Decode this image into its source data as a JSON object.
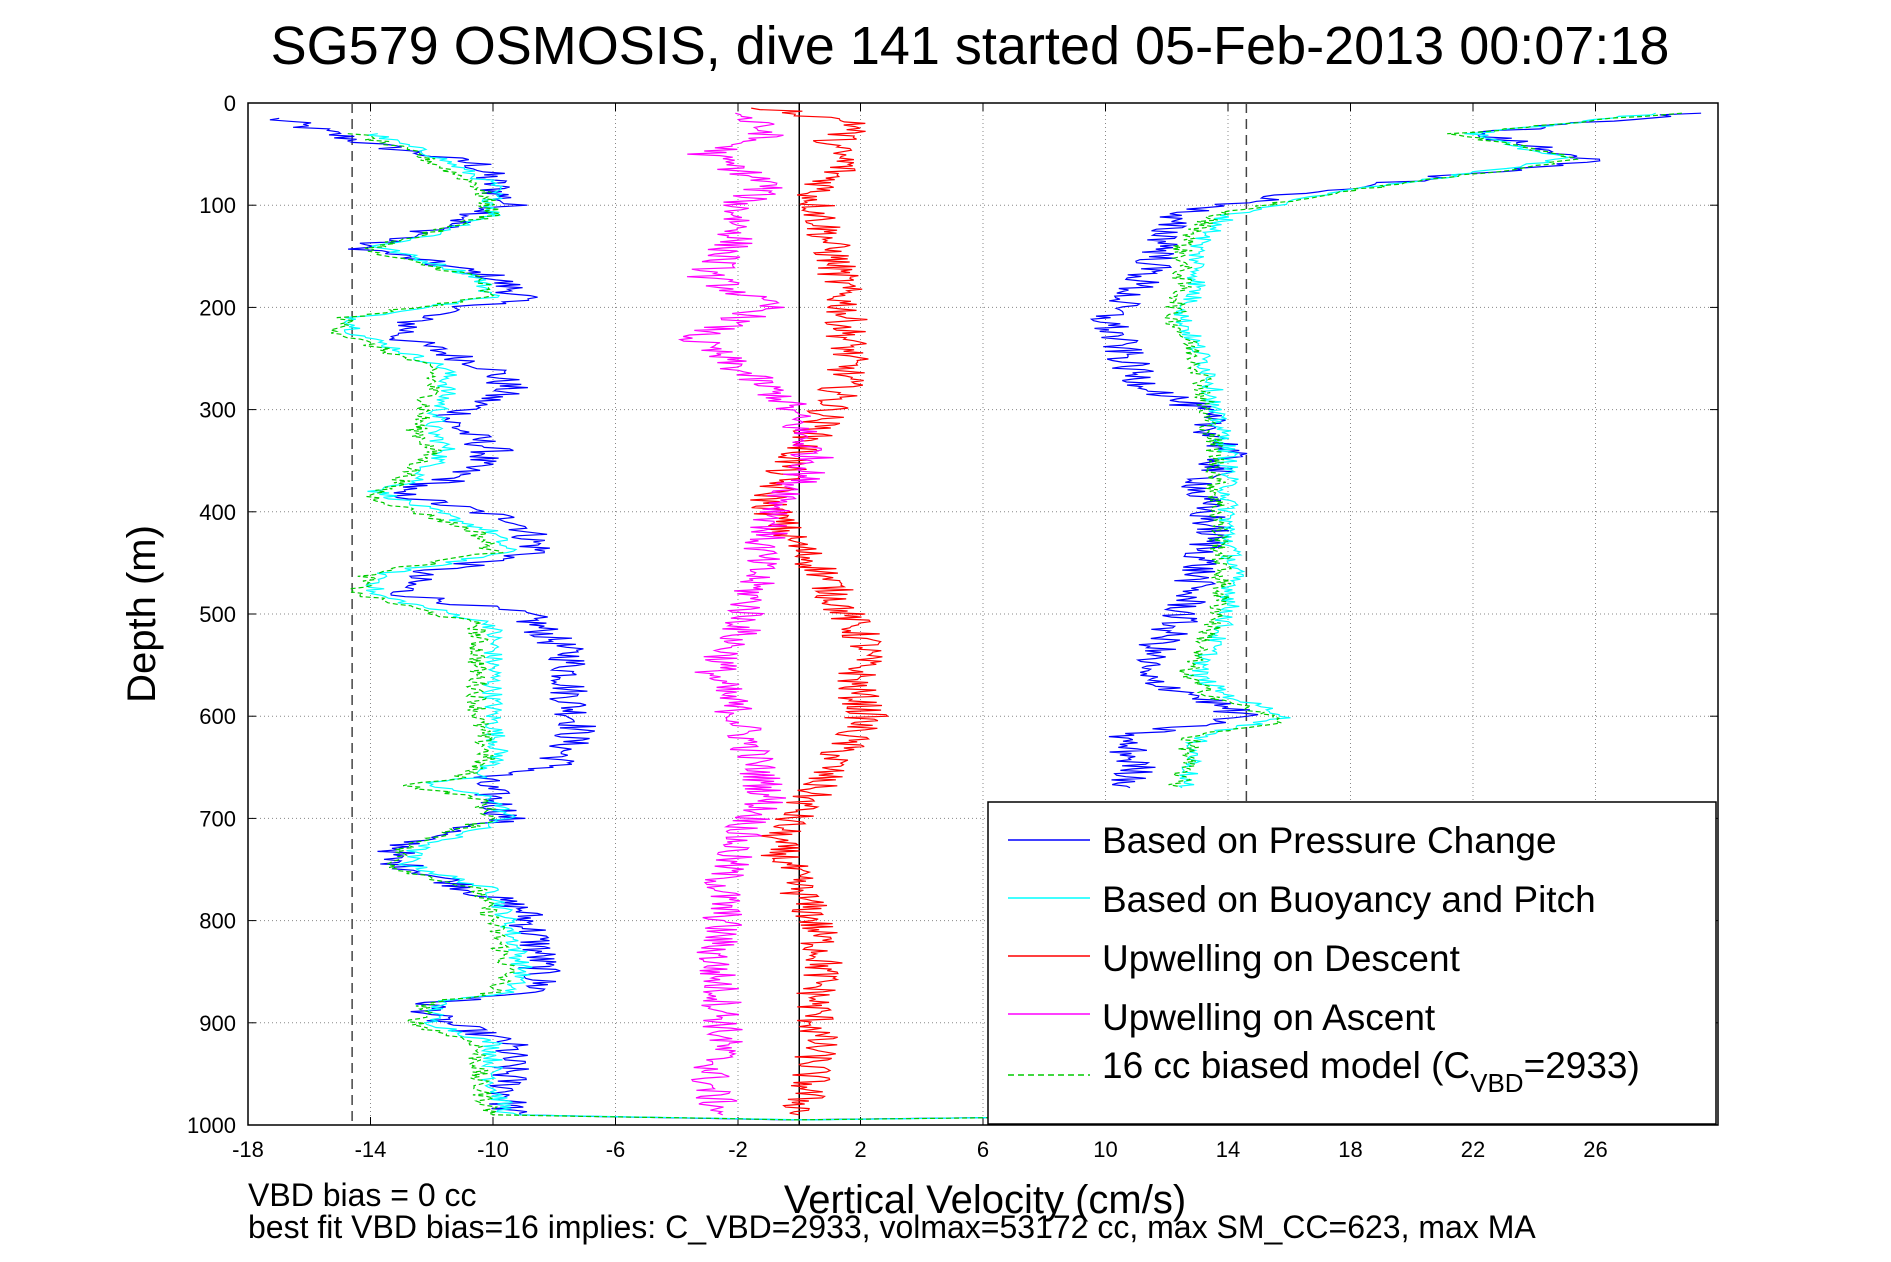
{
  "chart_data": {
    "type": "line",
    "title": "SG579 OSMOSIS, dive 141 started 05-Feb-2013 00:07:18",
    "xlabel": "Vertical Velocity (cm/s)",
    "ylabel": "Depth (m)",
    "xlim": [
      -18,
      30
    ],
    "ylim": [
      0,
      1000
    ],
    "y_reversed": true,
    "grid": true,
    "x_ticks": [
      -18,
      -14,
      -10,
      -6,
      -2,
      2,
      6,
      10,
      14,
      18,
      22,
      26
    ],
    "y_ticks": [
      0,
      100,
      200,
      300,
      400,
      500,
      600,
      700,
      800,
      900,
      1000
    ],
    "reference_lines": {
      "dashed_x": [
        -14.6,
        14.6
      ],
      "solid_x": [
        0
      ]
    },
    "legend_position": "lower-right",
    "legend": [
      {
        "label": "Based on Pressure Change",
        "color": "#0000ff",
        "dash": "solid"
      },
      {
        "label": "Based on Buoyancy and Pitch",
        "color": "#00ffff",
        "dash": "solid"
      },
      {
        "label": "Upwelling on Descent",
        "color": "#ff0000",
        "dash": "solid"
      },
      {
        "label": "Upwelling on Ascent",
        "color": "#ff00ff",
        "dash": "solid"
      },
      {
        "label": "16 cc biased model (C",
        "label_sub": "VBD",
        "label_tail": "=2933)",
        "color": "#00cc00",
        "dash": "dashed"
      }
    ],
    "series": [
      {
        "name": "Based on Pressure Change",
        "color": "#0000ff",
        "points": [
          [
            -17.2,
            15
          ],
          [
            -14,
            40
          ],
          [
            -10.5,
            60
          ],
          [
            -9.5,
            100
          ],
          [
            -12.5,
            130
          ],
          [
            -14.5,
            140
          ],
          [
            -10,
            170
          ],
          [
            -9,
            190
          ],
          [
            -12.5,
            210
          ],
          [
            -13,
            230
          ],
          [
            -10,
            260
          ],
          [
            -9.5,
            280
          ],
          [
            -11.5,
            310
          ],
          [
            -10,
            340
          ],
          [
            -11.5,
            370
          ],
          [
            -13.5,
            380
          ],
          [
            -9,
            410
          ],
          [
            -8.5,
            440
          ],
          [
            -12.5,
            460
          ],
          [
            -13,
            480
          ],
          [
            -9,
            500
          ],
          [
            -7.5,
            540
          ],
          [
            -7.5,
            580
          ],
          [
            -7.2,
            610
          ],
          [
            -8,
            650
          ],
          [
            -10.5,
            660
          ],
          [
            -10,
            680
          ],
          [
            -9.5,
            700
          ],
          [
            -12.5,
            720
          ],
          [
            -13.5,
            740
          ],
          [
            -11.5,
            760
          ],
          [
            -9,
            790
          ],
          [
            -8.5,
            830
          ],
          [
            -8.5,
            870
          ],
          [
            -12,
            880
          ],
          [
            -12,
            895
          ],
          [
            -9.5,
            920
          ],
          [
            -9.5,
            960
          ],
          [
            -9.5,
            990
          ],
          [
            0,
            995
          ],
          [
            14,
            990
          ]
        ]
      },
      {
        "name": "Based on Buoyancy and Pitch",
        "color": "#00ffff",
        "points": [
          [
            -14,
            30
          ],
          [
            -12,
            50
          ],
          [
            -10,
            80
          ],
          [
            -10,
            110
          ],
          [
            -12,
            130
          ],
          [
            -13.8,
            140
          ],
          [
            -10.5,
            170
          ],
          [
            -10,
            190
          ],
          [
            -14.5,
            210
          ],
          [
            -14.5,
            225
          ],
          [
            -11.5,
            260
          ],
          [
            -11.5,
            280
          ],
          [
            -12,
            320
          ],
          [
            -11.5,
            340
          ],
          [
            -12.5,
            370
          ],
          [
            -13.8,
            380
          ],
          [
            -10,
            420
          ],
          [
            -9.5,
            440
          ],
          [
            -13.5,
            460
          ],
          [
            -14,
            480
          ],
          [
            -10,
            510
          ],
          [
            -10,
            550
          ],
          [
            -10,
            600
          ],
          [
            -9.8,
            640
          ],
          [
            -10.5,
            660
          ],
          [
            -12.5,
            665
          ],
          [
            -10,
            680
          ],
          [
            -9.5,
            700
          ],
          [
            -12.5,
            730
          ],
          [
            -12.8,
            745
          ],
          [
            -10,
            770
          ],
          [
            -9.5,
            800
          ],
          [
            -9,
            850
          ],
          [
            -9.5,
            870
          ],
          [
            -11.8,
            880
          ],
          [
            -12,
            900
          ],
          [
            -10,
            920
          ],
          [
            -10,
            960
          ],
          [
            -9.5,
            990
          ],
          [
            0,
            995
          ],
          [
            14,
            990
          ]
        ]
      },
      {
        "name": "16 cc biased model (C_VBD=2933)",
        "color": "#00cc00",
        "points": [
          [
            -14.5,
            30
          ],
          [
            -12.5,
            50
          ],
          [
            -10.5,
            80
          ],
          [
            -10,
            110
          ],
          [
            -12.5,
            130
          ],
          [
            -14.2,
            145
          ],
          [
            -10.5,
            170
          ],
          [
            -10.2,
            190
          ],
          [
            -14.8,
            210
          ],
          [
            -15,
            225
          ],
          [
            -12,
            260
          ],
          [
            -12,
            280
          ],
          [
            -12.5,
            320
          ],
          [
            -12,
            340
          ],
          [
            -13,
            370
          ],
          [
            -14,
            385
          ],
          [
            -10.5,
            420
          ],
          [
            -10,
            440
          ],
          [
            -14,
            460
          ],
          [
            -14.5,
            480
          ],
          [
            -10.5,
            510
          ],
          [
            -10.5,
            550
          ],
          [
            -10.5,
            600
          ],
          [
            -10.2,
            640
          ],
          [
            -11,
            660
          ],
          [
            -12.8,
            668
          ],
          [
            -10.5,
            680
          ],
          [
            -10,
            700
          ],
          [
            -13,
            730
          ],
          [
            -13.2,
            748
          ],
          [
            -10.5,
            770
          ],
          [
            -10,
            800
          ],
          [
            -9.5,
            850
          ],
          [
            -10,
            870
          ],
          [
            -12.2,
            882
          ],
          [
            -12.5,
            902
          ],
          [
            -10.5,
            920
          ],
          [
            -10.5,
            960
          ],
          [
            -10,
            990
          ],
          [
            0,
            995
          ],
          [
            14,
            990
          ]
        ]
      },
      {
        "name": "Upwelling on Descent",
        "color": "#ff0000",
        "points": [
          [
            -1,
            5
          ],
          [
            2,
            20
          ],
          [
            1,
            40
          ],
          [
            1.5,
            60
          ],
          [
            0.5,
            90
          ],
          [
            0.8,
            120
          ],
          [
            1.2,
            160
          ],
          [
            1.5,
            200
          ],
          [
            1.6,
            240
          ],
          [
            1.5,
            270
          ],
          [
            1,
            300
          ],
          [
            0.3,
            330
          ],
          [
            -0.5,
            360
          ],
          [
            -1,
            390
          ],
          [
            -0.5,
            420
          ],
          [
            0.8,
            460
          ],
          [
            1.5,
            500
          ],
          [
            2.2,
            530
          ],
          [
            1.8,
            570
          ],
          [
            2.2,
            600
          ],
          [
            1.2,
            640
          ],
          [
            0.3,
            680
          ],
          [
            -0.8,
            720
          ],
          [
            -0.2,
            760
          ],
          [
            0.5,
            800
          ],
          [
            0.8,
            840
          ],
          [
            0.5,
            880
          ],
          [
            0.6,
            920
          ],
          [
            0.3,
            960
          ],
          [
            0,
            990
          ]
        ]
      },
      {
        "name": "Upwelling on Ascent",
        "color": "#ff00ff",
        "points": [
          [
            -2,
            10
          ],
          [
            -1,
            30
          ],
          [
            -3,
            50
          ],
          [
            -1,
            80
          ],
          [
            -2,
            100
          ],
          [
            -2,
            130
          ],
          [
            -3,
            170
          ],
          [
            -1,
            200
          ],
          [
            -3.5,
            230
          ],
          [
            -2,
            260
          ],
          [
            -0.5,
            290
          ],
          [
            0,
            320
          ],
          [
            0.5,
            350
          ],
          [
            -0.5,
            390
          ],
          [
            -1.2,
            430
          ],
          [
            -1.5,
            470
          ],
          [
            -1.8,
            510
          ],
          [
            -2.8,
            560
          ],
          [
            -2,
            600
          ],
          [
            -1.5,
            640
          ],
          [
            -1,
            680
          ],
          [
            -2,
            720
          ],
          [
            -2.5,
            760
          ],
          [
            -2.5,
            800
          ],
          [
            -2.8,
            840
          ],
          [
            -2.5,
            880
          ],
          [
            -2.5,
            920
          ],
          [
            -3,
            960
          ],
          [
            -2.5,
            990
          ]
        ]
      },
      {
        "name": "Based on Pressure Change (ascent)",
        "color": "#0000ff",
        "points": [
          [
            29,
            10
          ],
          [
            22,
            30
          ],
          [
            26,
            55
          ],
          [
            16,
            90
          ],
          [
            12,
            110
          ],
          [
            12,
            140
          ],
          [
            11,
            180
          ],
          [
            10,
            210
          ],
          [
            10.5,
            240
          ],
          [
            11,
            270
          ],
          [
            13,
            300
          ],
          [
            14,
            340
          ],
          [
            13,
            380
          ],
          [
            13.5,
            420
          ],
          [
            13,
            460
          ],
          [
            12.5,
            500
          ],
          [
            11,
            560
          ],
          [
            13,
            580
          ],
          [
            14.5,
            600
          ],
          [
            10.5,
            620
          ],
          [
            11,
            650
          ],
          [
            10.8,
            670
          ]
        ]
      },
      {
        "name": "Based on Buoyancy and Pitch (ascent)",
        "color": "#00ffff",
        "points": [
          [
            28,
            10
          ],
          [
            22,
            30
          ],
          [
            25,
            55
          ],
          [
            17,
            90
          ],
          [
            14,
            110
          ],
          [
            13,
            140
          ],
          [
            13,
            180
          ],
          [
            12.5,
            210
          ],
          [
            13,
            240
          ],
          [
            13.5,
            270
          ],
          [
            13.5,
            300
          ],
          [
            14,
            340
          ],
          [
            14,
            380
          ],
          [
            14,
            420
          ],
          [
            14.2,
            460
          ],
          [
            14,
            500
          ],
          [
            13,
            560
          ],
          [
            14,
            580
          ],
          [
            16,
            600
          ],
          [
            13,
            620
          ],
          [
            12.8,
            650
          ],
          [
            12.5,
            670
          ]
        ]
      },
      {
        "name": "16 cc biased model (ascent)",
        "color": "#00cc00",
        "points": [
          [
            28.5,
            10
          ],
          [
            21.5,
            30
          ],
          [
            25.5,
            55
          ],
          [
            17,
            90
          ],
          [
            13.5,
            110
          ],
          [
            12.5,
            140
          ],
          [
            12.5,
            180
          ],
          [
            12.2,
            210
          ],
          [
            12.8,
            240
          ],
          [
            13.2,
            270
          ],
          [
            13.2,
            300
          ],
          [
            13.6,
            340
          ],
          [
            13.6,
            380
          ],
          [
            13.7,
            420
          ],
          [
            13.8,
            460
          ],
          [
            13.7,
            500
          ],
          [
            12.6,
            560
          ],
          [
            13.5,
            580
          ],
          [
            15.8,
            605
          ],
          [
            12.8,
            620
          ],
          [
            12.6,
            650
          ],
          [
            12.3,
            670
          ]
        ]
      }
    ]
  },
  "footnotes": {
    "line1": "VBD bias = 0 cc",
    "line2": "best fit VBD bias=16 implies: C_VBD=2933, volmax=53172 cc, max SM_CC=623, max MA"
  }
}
